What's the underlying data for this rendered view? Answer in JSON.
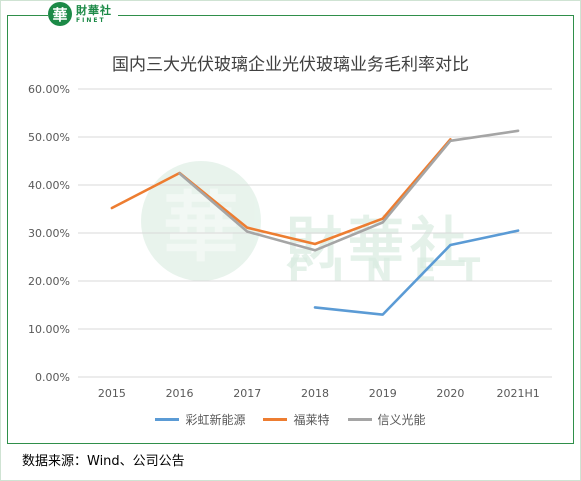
{
  "brand": {
    "seal_glyph": "華",
    "name_cn": "財華社",
    "name_en": "FINET"
  },
  "source_note": "数据来源：Wind、公司公告",
  "colors": {
    "brand_green": "#1c8a47",
    "grid": "#d9d9d9"
  },
  "chart_data": {
    "type": "line",
    "title": "国内三大光伏玻璃企业光伏玻璃业务毛利率对比",
    "xlabel": "",
    "ylabel": "",
    "categories": [
      "2015",
      "2016",
      "2017",
      "2018",
      "2019",
      "2020",
      "2021H1"
    ],
    "ylim": [
      0,
      0.6
    ],
    "yticks": [
      "0.00%",
      "10.00%",
      "20.00%",
      "30.00%",
      "40.00%",
      "50.00%",
      "60.00%"
    ],
    "grid": true,
    "legend": "bottom",
    "series": [
      {
        "name": "彩虹新能源",
        "color": "#5b9bd5",
        "values": [
          null,
          null,
          null,
          0.145,
          0.13,
          0.275,
          0.305
        ]
      },
      {
        "name": "福莱特",
        "color": "#ed7d31",
        "values": [
          0.352,
          0.425,
          0.311,
          0.277,
          0.33,
          0.495,
          null
        ]
      },
      {
        "name": "信义光能",
        "color": "#a5a5a5",
        "values": [
          null,
          0.424,
          0.303,
          0.264,
          0.322,
          0.492,
          0.513
        ]
      }
    ]
  }
}
